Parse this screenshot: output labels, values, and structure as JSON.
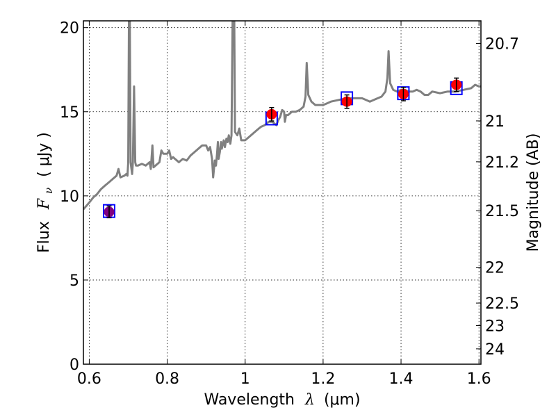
{
  "chart_data": {
    "type": "line",
    "xlabel": "Wavelength",
    "xlabel_symbol": "λ",
    "xlabel_unit": "(μm)",
    "ylabel": "Flux",
    "ylabel_symbol": "F",
    "ylabel_subscript": "ν",
    "ylabel_unit": "( μJy )",
    "y2label": "Magnitude (AB)",
    "xlim": [
      0.585,
      1.605
    ],
    "ylim": [
      0,
      20.4
    ],
    "grid": true,
    "x_ticks": [
      {
        "value": 0.6,
        "label": "0.6"
      },
      {
        "value": 0.8,
        "label": "0.8"
      },
      {
        "value": 1.0,
        "label": "1"
      },
      {
        "value": 1.2,
        "label": "1.2"
      },
      {
        "value": 1.4,
        "label": "1.4"
      },
      {
        "value": 1.6,
        "label": "1.6"
      }
    ],
    "y_ticks": [
      {
        "value": 0,
        "label": "0"
      },
      {
        "value": 5,
        "label": "5"
      },
      {
        "value": 10,
        "label": "10"
      },
      {
        "value": 15,
        "label": "15"
      },
      {
        "value": 20,
        "label": "20"
      }
    ],
    "y2_ticks": [
      {
        "value": 20.7,
        "label": "20.7"
      },
      {
        "value": 21,
        "label": "21"
      },
      {
        "value": 21.2,
        "label": "21.2"
      },
      {
        "value": 21.5,
        "label": "21.5"
      },
      {
        "value": 22,
        "label": "22"
      },
      {
        "value": 22.5,
        "label": "22.5"
      },
      {
        "value": 23,
        "label": "23"
      },
      {
        "value": 24,
        "label": "24"
      }
    ],
    "spectrum": {
      "color": "#808080",
      "points": [
        [
          0.585,
          9.2
        ],
        [
          0.6,
          9.6
        ],
        [
          0.61,
          9.9
        ],
        [
          0.62,
          10.1
        ],
        [
          0.63,
          10.4
        ],
        [
          0.64,
          10.6
        ],
        [
          0.65,
          10.8
        ],
        [
          0.66,
          11.0
        ],
        [
          0.67,
          11.2
        ],
        [
          0.675,
          11.6
        ],
        [
          0.68,
          11.1
        ],
        [
          0.69,
          11.2
        ],
        [
          0.695,
          11.3
        ],
        [
          0.698,
          11.2
        ],
        [
          0.7,
          12.0
        ],
        [
          0.702,
          21.0
        ],
        [
          0.704,
          21.0
        ],
        [
          0.706,
          12.0
        ],
        [
          0.71,
          11.3
        ],
        [
          0.712,
          12.0
        ],
        [
          0.715,
          16.5
        ],
        [
          0.718,
          12.0
        ],
        [
          0.72,
          11.8
        ],
        [
          0.725,
          11.8
        ],
        [
          0.735,
          11.9
        ],
        [
          0.745,
          11.8
        ],
        [
          0.75,
          11.9
        ],
        [
          0.755,
          12.0
        ],
        [
          0.758,
          11.6
        ],
        [
          0.762,
          13.0
        ],
        [
          0.765,
          11.7
        ],
        [
          0.77,
          11.8
        ],
        [
          0.78,
          12.0
        ],
        [
          0.785,
          12.7
        ],
        [
          0.79,
          12.5
        ],
        [
          0.8,
          12.5
        ],
        [
          0.805,
          12.7
        ],
        [
          0.81,
          12.2
        ],
        [
          0.815,
          12.3
        ],
        [
          0.82,
          12.2
        ],
        [
          0.83,
          12.0
        ],
        [
          0.84,
          12.2
        ],
        [
          0.85,
          12.1
        ],
        [
          0.86,
          12.4
        ],
        [
          0.87,
          12.6
        ],
        [
          0.88,
          12.8
        ],
        [
          0.89,
          13.0
        ],
        [
          0.9,
          13.0
        ],
        [
          0.905,
          12.7
        ],
        [
          0.91,
          12.9
        ],
        [
          0.915,
          12.2
        ],
        [
          0.918,
          11.1
        ],
        [
          0.922,
          12.1
        ],
        [
          0.925,
          11.8
        ],
        [
          0.928,
          12.5
        ],
        [
          0.93,
          13.2
        ],
        [
          0.932,
          12.2
        ],
        [
          0.935,
          12.6
        ],
        [
          0.938,
          13.2
        ],
        [
          0.94,
          12.8
        ],
        [
          0.945,
          13.3
        ],
        [
          0.948,
          12.9
        ],
        [
          0.952,
          13.4
        ],
        [
          0.955,
          13.2
        ],
        [
          0.958,
          13.6
        ],
        [
          0.962,
          13.1
        ],
        [
          0.965,
          13.6
        ],
        [
          0.968,
          21.0
        ],
        [
          0.972,
          21.0
        ],
        [
          0.974,
          13.8
        ],
        [
          0.98,
          13.6
        ],
        [
          0.985,
          14.0
        ],
        [
          0.99,
          13.3
        ],
        [
          0.995,
          13.3
        ],
        [
          1.0,
          13.3
        ],
        [
          1.01,
          13.5
        ],
        [
          1.02,
          13.7
        ],
        [
          1.03,
          13.9
        ],
        [
          1.04,
          14.1
        ],
        [
          1.05,
          14.2
        ],
        [
          1.06,
          14.4
        ],
        [
          1.07,
          14.4
        ],
        [
          1.075,
          14.3
        ],
        [
          1.08,
          14.2
        ],
        [
          1.085,
          14.5
        ],
        [
          1.09,
          14.7
        ],
        [
          1.095,
          15.1
        ],
        [
          1.1,
          15.0
        ],
        [
          1.102,
          14.4
        ],
        [
          1.105,
          14.8
        ],
        [
          1.11,
          14.8
        ],
        [
          1.115,
          14.9
        ],
        [
          1.12,
          15.0
        ],
        [
          1.13,
          15.0
        ],
        [
          1.14,
          15.1
        ],
        [
          1.145,
          15.2
        ],
        [
          1.15,
          15.3
        ],
        [
          1.155,
          15.9
        ],
        [
          1.158,
          17.9
        ],
        [
          1.162,
          16.0
        ],
        [
          1.17,
          15.6
        ],
        [
          1.18,
          15.4
        ],
        [
          1.19,
          15.4
        ],
        [
          1.2,
          15.4
        ],
        [
          1.21,
          15.5
        ],
        [
          1.22,
          15.6
        ],
        [
          1.24,
          15.7
        ],
        [
          1.26,
          15.8
        ],
        [
          1.28,
          15.8
        ],
        [
          1.3,
          15.8
        ],
        [
          1.31,
          15.7
        ],
        [
          1.32,
          15.6
        ],
        [
          1.33,
          15.7
        ],
        [
          1.34,
          15.8
        ],
        [
          1.35,
          15.9
        ],
        [
          1.36,
          16.2
        ],
        [
          1.365,
          17.0
        ],
        [
          1.368,
          18.6
        ],
        [
          1.372,
          16.7
        ],
        [
          1.38,
          16.3
        ],
        [
          1.39,
          16.2
        ],
        [
          1.4,
          16.3
        ],
        [
          1.41,
          16.3
        ],
        [
          1.42,
          16.2
        ],
        [
          1.43,
          16.2
        ],
        [
          1.44,
          16.3
        ],
        [
          1.45,
          16.2
        ],
        [
          1.46,
          16.0
        ],
        [
          1.47,
          16.0
        ],
        [
          1.48,
          16.2
        ],
        [
          1.5,
          16.1
        ],
        [
          1.52,
          16.2
        ],
        [
          1.54,
          16.2
        ],
        [
          1.56,
          16.3
        ],
        [
          1.58,
          16.4
        ],
        [
          1.59,
          16.6
        ],
        [
          1.6,
          16.5
        ],
        [
          1.605,
          16.5
        ]
      ]
    },
    "model_points": {
      "marker": "square",
      "color": "#0000ff",
      "points": [
        {
          "x": 0.651,
          "y": 9.1
        },
        {
          "x": 1.068,
          "y": 14.6
        },
        {
          "x": 1.261,
          "y": 15.8
        },
        {
          "x": 1.406,
          "y": 16.1
        },
        {
          "x": 1.542,
          "y": 16.4
        }
      ]
    },
    "observed_points": {
      "marker": "circle",
      "colors": [
        "#800080",
        "#ff0000",
        "#ff0000",
        "#ff0000",
        "#ff0000"
      ],
      "points": [
        {
          "x": 0.651,
          "y": 9.05,
          "err": 0.35
        },
        {
          "x": 1.068,
          "y": 14.85,
          "err": 0.4
        },
        {
          "x": 1.261,
          "y": 15.6,
          "err": 0.4
        },
        {
          "x": 1.406,
          "y": 16.05,
          "err": 0.4
        },
        {
          "x": 1.542,
          "y": 16.6,
          "err": 0.4
        }
      ]
    }
  }
}
